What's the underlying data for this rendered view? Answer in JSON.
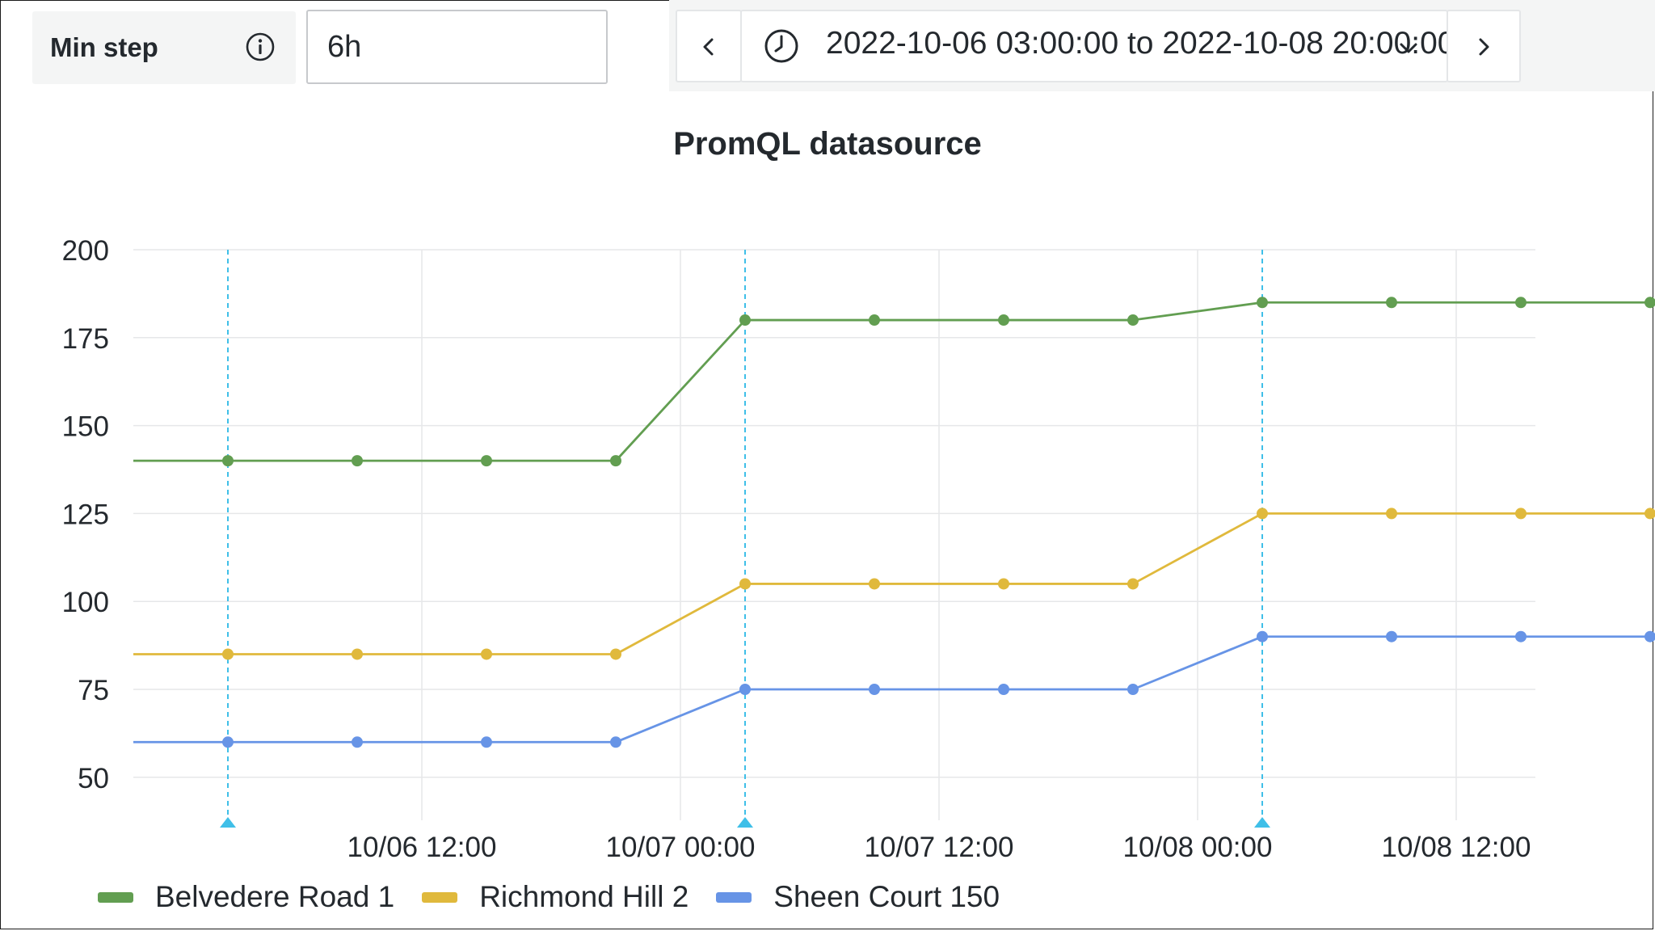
{
  "toolbar": {
    "min_step_label": "Min step",
    "min_step_value": "6h",
    "time_range": "2022-10-06 03:00:00 to 2022-10-08 20:00:00"
  },
  "chart_data": {
    "type": "line",
    "title": "PromQL datasource",
    "x": [
      "10/06 03:00",
      "10/06 09:00",
      "10/06 15:00",
      "10/06 21:00",
      "10/07 03:00",
      "10/07 09:00",
      "10/07 15:00",
      "10/07 21:00",
      "10/08 03:00",
      "10/08 09:00",
      "10/08 15:00",
      "10/08 20:00"
    ],
    "marked_x": [
      "10/06 03:00",
      "10/07 03:00",
      "10/08 03:00"
    ],
    "series": [
      {
        "name": "Belvedere Road 1",
        "color": "#629e51",
        "values": [
          140,
          140,
          140,
          140,
          180,
          180,
          180,
          180,
          185,
          185,
          185,
          185
        ]
      },
      {
        "name": "Richmond Hill 2",
        "color": "#e0b93c",
        "values": [
          85,
          85,
          85,
          85,
          105,
          105,
          105,
          105,
          125,
          125,
          125,
          125
        ]
      },
      {
        "name": "Sheen Court 150",
        "color": "#6794e6",
        "values": [
          60,
          60,
          60,
          60,
          75,
          75,
          75,
          75,
          90,
          90,
          90,
          90
        ]
      }
    ],
    "y_ticks": [
      200,
      175,
      150,
      125,
      100,
      75,
      50
    ],
    "x_tick_labels": [
      "10/06 12:00",
      "10/07 00:00",
      "10/07 12:00",
      "10/08 00:00",
      "10/08 12:00"
    ],
    "ylim": [
      45,
      200
    ],
    "grid": true,
    "legend_position": "bottom-left",
    "annotation_color": "#3fbfe8"
  }
}
